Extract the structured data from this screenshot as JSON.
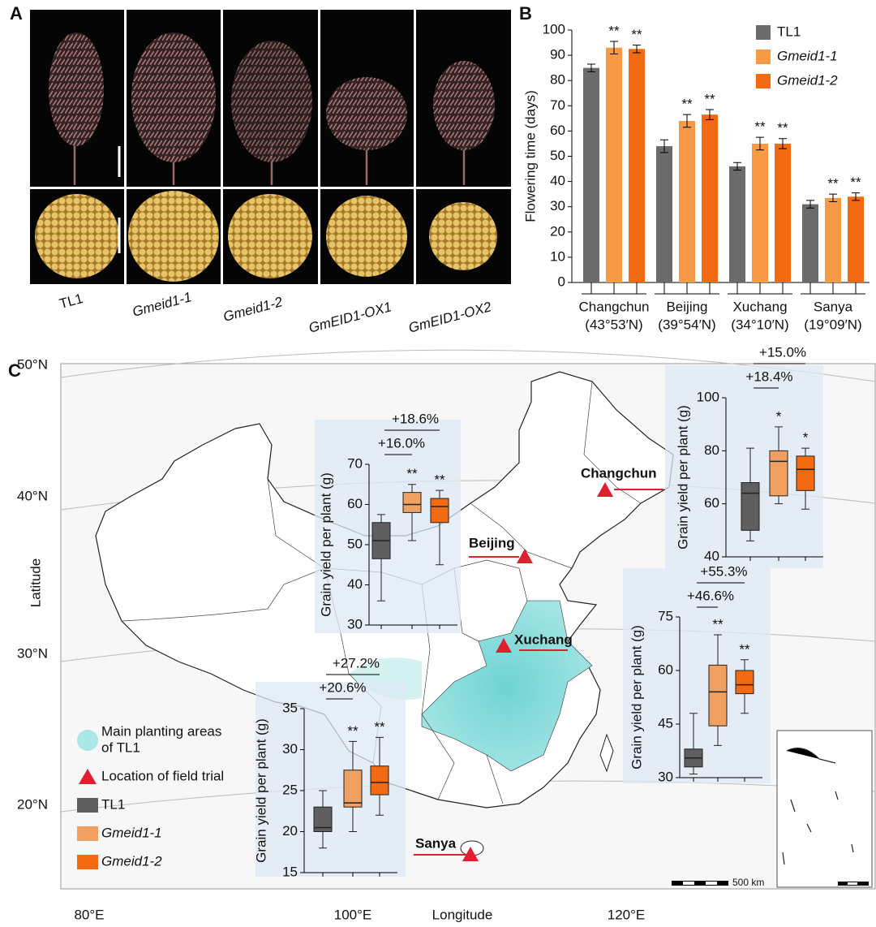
{
  "panel_labels": [
    "A",
    "B",
    "C"
  ],
  "photo_labels": [
    "TL1",
    "Gmeid1-1",
    "Gmeid1-2",
    "GmEID1-OX1",
    "GmEID1-OX2"
  ],
  "map": {
    "lat_labels": [
      "50°N",
      "40°N",
      "30°N",
      "20°N"
    ],
    "lon_labels": [
      "80°E",
      "100°E",
      "120°E"
    ],
    "ylabel": "Latitude",
    "xlabel": "Longitude",
    "cities": [
      "Changchun",
      "Beijing",
      "Xuchang",
      "Sanya"
    ],
    "legend": [
      {
        "label": [
          "Main planting areas",
          "of TL1"
        ]
      },
      {
        "label": [
          "Location of field trial"
        ]
      },
      {
        "label": [
          "TL1"
        ],
        "color": "#5f5f5f"
      },
      {
        "label": [
          "Gmeid1-1"
        ],
        "color": "#f0a060",
        "italic": true
      },
      {
        "label": [
          "Gmeid1-2"
        ],
        "color": "#f26a12",
        "italic": true
      }
    ],
    "scale_label": "500 km"
  },
  "chart_data": [
    {
      "type": "bar",
      "ylabel": "Flowering time (days)",
      "categories": [
        "Changchun",
        "Beijing",
        "Xuchang",
        "Sanya"
      ],
      "category_sublabels": [
        "(43°53′N)",
        "(39°54′N)",
        "(34°10′N)",
        "(19°09′N)"
      ],
      "ylim": [
        0,
        100
      ],
      "yticks": [
        0,
        10,
        20,
        30,
        40,
        50,
        60,
        70,
        80,
        90,
        100
      ],
      "series": [
        {
          "name": "TL1",
          "color": "#6b6b6b",
          "values": [
            85,
            54,
            46,
            31
          ],
          "errors": [
            1.5,
            2.5,
            1.5,
            1.5
          ]
        },
        {
          "name": "Gmeid1-1",
          "color": "#f79a45",
          "italic": true,
          "values": [
            93,
            64,
            55,
            33.5
          ],
          "errors": [
            2.5,
            2.5,
            2.5,
            1.5
          ],
          "significance": [
            "**",
            "**",
            "**",
            "**"
          ]
        },
        {
          "name": "Gmeid1-2",
          "color": "#f26a12",
          "italic": true,
          "values": [
            92.5,
            66.5,
            55,
            34
          ],
          "errors": [
            1.5,
            2,
            2,
            1.5
          ],
          "significance": [
            "**",
            "**",
            "**",
            "**"
          ]
        }
      ]
    },
    {
      "type": "box",
      "ylabel": "Grain yield per plant (g)",
      "ylim": [
        30,
        70
      ],
      "yticks": [
        30,
        40,
        50,
        60,
        70
      ],
      "colors": [
        "#5f5f5f",
        "#f0a060",
        "#f26a12"
      ],
      "boxes": [
        {
          "min": 36,
          "q1": 46.5,
          "median": 51,
          "q3": 55.5,
          "max": 57.5
        },
        {
          "min": 51,
          "q1": 58,
          "median": 60,
          "q3": 63,
          "max": 65
        },
        {
          "min": 45,
          "q1": 55.5,
          "median": 59.5,
          "q3": 61.5,
          "max": 63.5
        }
      ],
      "significance": [
        null,
        "**",
        "**"
      ],
      "comparison_labels": [
        "+16.0%",
        "+18.6%"
      ]
    },
    {
      "type": "box",
      "ylabel": "Grain yield per plant (g)",
      "ylim": [
        40,
        100
      ],
      "yticks": [
        40,
        60,
        80,
        100
      ],
      "colors": [
        "#5f5f5f",
        "#f0a060",
        "#f26a12"
      ],
      "boxes": [
        {
          "min": 46,
          "q1": 50,
          "median": 64,
          "q3": 68,
          "max": 81
        },
        {
          "min": 60,
          "q1": 63,
          "median": 76,
          "q3": 80,
          "max": 89
        },
        {
          "min": 58,
          "q1": 65,
          "median": 73,
          "q3": 78,
          "max": 81
        }
      ],
      "significance": [
        null,
        "*",
        "*"
      ],
      "comparison_labels": [
        "+18.4%",
        "+15.0%"
      ]
    },
    {
      "type": "box",
      "ylabel": "Grain yield per plant (g)",
      "ylim": [
        30,
        75
      ],
      "yticks": [
        30,
        45,
        60,
        75
      ],
      "colors": [
        "#5f5f5f",
        "#f0a060",
        "#f26a12"
      ],
      "boxes": [
        {
          "min": 31,
          "q1": 33,
          "median": 35.5,
          "q3": 38,
          "max": 48
        },
        {
          "min": 39,
          "q1": 44.5,
          "median": 54,
          "q3": 61.5,
          "max": 70
        },
        {
          "min": 48,
          "q1": 53.5,
          "median": 56,
          "q3": 60,
          "max": 63
        }
      ],
      "significance": [
        null,
        "**",
        "**"
      ],
      "comparison_labels": [
        "+46.6%",
        "+55.3%"
      ]
    },
    {
      "type": "box",
      "ylabel": "Grain yield per plant (g)",
      "ylim": [
        15,
        35
      ],
      "yticks": [
        15,
        20,
        25,
        30,
        35
      ],
      "colors": [
        "#5f5f5f",
        "#f0a060",
        "#f26a12"
      ],
      "boxes": [
        {
          "min": 18,
          "q1": 20,
          "median": 20.5,
          "q3": 23,
          "max": 25
        },
        {
          "min": 20,
          "q1": 23,
          "median": 23.5,
          "q3": 27.5,
          "max": 31
        },
        {
          "min": 22,
          "q1": 24.5,
          "median": 26,
          "q3": 28,
          "max": 31.5
        }
      ],
      "significance": [
        null,
        "**",
        "**"
      ],
      "comparison_labels": [
        "+20.6%",
        "+27.2%"
      ]
    }
  ]
}
